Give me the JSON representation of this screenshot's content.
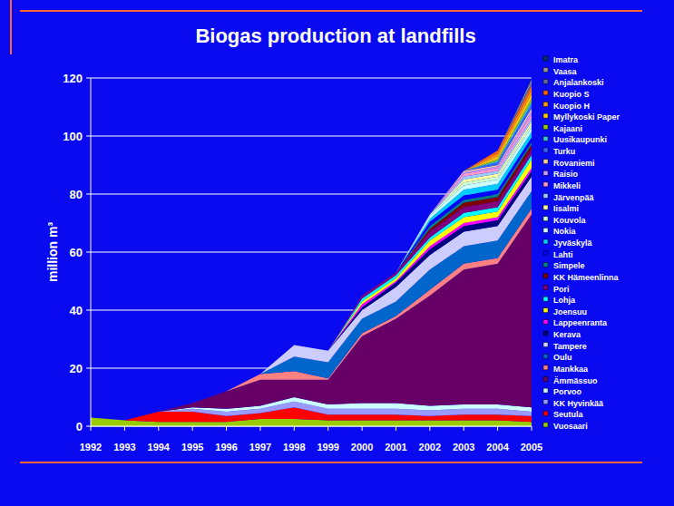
{
  "chart_data": {
    "type": "area",
    "stacked": true,
    "grid": true,
    "legend": "right",
    "title": "Biogas production at landfills",
    "y_label": "million m³",
    "categories": [
      "1992",
      "1993",
      "1994",
      "1995",
      "1996",
      "1997",
      "1998",
      "1999",
      "2000",
      "2001",
      "2002",
      "2003",
      "2004",
      "2005"
    ],
    "ylim": [
      0,
      120
    ],
    "yticks": [
      0,
      20,
      40,
      60,
      80,
      100,
      120
    ],
    "series": [
      {
        "name": "Vuosaari",
        "color": "#99cc00",
        "values": [
          3,
          2,
          1.5,
          1.5,
          1.5,
          2.5,
          2.5,
          2,
          2,
          2,
          2,
          2,
          2,
          1.5
        ]
      },
      {
        "name": "Seutula",
        "color": "#ff0000",
        "values": [
          0,
          0,
          3.5,
          3.5,
          2,
          2,
          4,
          2,
          2,
          2,
          1.5,
          2,
          2,
          2
        ]
      },
      {
        "name": "KK Hyvinkää",
        "color": "#9999ff",
        "values": [
          0,
          0,
          0,
          1,
          1.5,
          1.5,
          2,
          2,
          2,
          2,
          2,
          2,
          2,
          1.5
        ]
      },
      {
        "name": "Porvoo",
        "color": "#ccffff",
        "values": [
          0,
          0,
          0,
          0.5,
          1,
          1,
          1.5,
          1.5,
          2,
          2,
          1.5,
          1.5,
          1.5,
          1.5
        ]
      },
      {
        "name": "Ämmässuo",
        "color": "#660066",
        "values": [
          0,
          0,
          0,
          1.5,
          6,
          9,
          6,
          8.5,
          23,
          29,
          38,
          46.5,
          48.5,
          66.5
        ]
      },
      {
        "name": "Mankkaa",
        "color": "#ff8080",
        "values": [
          0,
          0,
          0,
          0,
          0,
          2,
          3,
          0.5,
          1,
          1,
          2,
          2,
          2,
          2
        ]
      },
      {
        "name": "Oulu",
        "color": "#0066cc",
        "values": [
          0,
          0,
          0,
          0,
          0,
          0,
          5,
          5.5,
          5,
          5,
          7,
          6,
          6,
          6
        ]
      },
      {
        "name": "Tampere",
        "color": "#ccccff",
        "values": [
          0,
          0,
          0,
          0,
          0,
          0,
          4,
          4,
          3,
          5,
          5,
          5,
          5,
          5
        ]
      },
      {
        "name": "Kerava",
        "color": "#000080",
        "values": [
          0,
          0,
          0,
          0,
          0,
          0,
          0,
          0,
          1,
          1.5,
          2,
          2,
          2,
          2
        ]
      },
      {
        "name": "Lappeenranta",
        "color": "#ff00ff",
        "values": [
          0,
          0,
          0,
          0,
          0,
          0,
          0,
          0,
          1,
          0.5,
          1,
          1,
          1,
          1
        ]
      },
      {
        "name": "Joensuu",
        "color": "#ffff00",
        "values": [
          0,
          0,
          0,
          0,
          0,
          0,
          0,
          0,
          1,
          1,
          2,
          2,
          2,
          3
        ]
      },
      {
        "name": "Lohja",
        "color": "#00ffff",
        "values": [
          0,
          0,
          0,
          0,
          0,
          0,
          0,
          0,
          1,
          1,
          1,
          1.5,
          1.5,
          1.5
        ]
      },
      {
        "name": "Pori",
        "color": "#800080",
        "values": [
          0,
          0,
          0,
          0,
          0,
          0,
          0,
          0,
          1,
          1,
          2,
          2,
          2,
          2
        ]
      },
      {
        "name": "KK Hämeenlinna",
        "color": "#800000",
        "values": [
          0,
          0,
          0,
          0,
          0,
          0,
          0,
          0,
          0,
          0,
          1,
          1.5,
          1.5,
          1.5
        ]
      },
      {
        "name": "Simpele",
        "color": "#008080",
        "values": [
          0,
          0,
          0,
          0,
          0,
          0,
          0,
          0,
          0,
          0,
          1,
          1,
          1,
          1
        ]
      },
      {
        "name": "Lahti",
        "color": "#0000ff",
        "values": [
          0,
          0,
          0,
          0,
          0,
          0,
          0,
          0,
          0,
          0,
          1.5,
          1.5,
          1.5,
          1.5
        ]
      },
      {
        "name": "Jyväskylä",
        "color": "#00ccff",
        "values": [
          0,
          0,
          0,
          0,
          0,
          0,
          0,
          0,
          0,
          0,
          1,
          2,
          2,
          2
        ]
      },
      {
        "name": "Nokia",
        "color": "#ccffff",
        "values": [
          0,
          0,
          0,
          0,
          0,
          0,
          0,
          0,
          0,
          0,
          1,
          1.5,
          1.5,
          1.5
        ]
      },
      {
        "name": "Kouvola",
        "color": "#ccffcc",
        "values": [
          0,
          0,
          0,
          0,
          0,
          0,
          0,
          0,
          0,
          0,
          0.5,
          1,
          1,
          1
        ]
      },
      {
        "name": "Iisalmi",
        "color": "#ffff99",
        "values": [
          0,
          0,
          0,
          0,
          0,
          0,
          0,
          0,
          0,
          0,
          0,
          1,
          1,
          1
        ]
      },
      {
        "name": "Järvenpää",
        "color": "#99ccff",
        "values": [
          0,
          0,
          0,
          0,
          0,
          0,
          0,
          0,
          0,
          0,
          0,
          1,
          1,
          1
        ]
      },
      {
        "name": "Mikkeli",
        "color": "#ff99cc",
        "values": [
          0,
          0,
          0,
          0,
          0,
          0,
          0,
          0,
          0,
          0,
          0,
          1,
          1,
          1.5
        ]
      },
      {
        "name": "Raisio",
        "color": "#cc99ff",
        "values": [
          0,
          0,
          0,
          0,
          0,
          0,
          0,
          0,
          0,
          0,
          0,
          0.5,
          0.5,
          1
        ]
      },
      {
        "name": "Rovaniemi",
        "color": "#ffcc99",
        "values": [
          0,
          0,
          0,
          0,
          0,
          0,
          0,
          0,
          0,
          0,
          0,
          0.5,
          0.5,
          1
        ]
      },
      {
        "name": "Turku",
        "color": "#3366ff",
        "values": [
          0,
          0,
          0,
          0,
          0,
          0,
          0,
          0,
          0,
          0,
          0,
          0,
          1,
          1.5
        ]
      },
      {
        "name": "Uusikaupunki",
        "color": "#33cccc",
        "values": [
          0,
          0,
          0,
          0,
          0,
          0,
          0,
          0,
          0,
          0,
          0,
          0,
          0.5,
          1
        ]
      },
      {
        "name": "Kajaani",
        "color": "#99cc00",
        "values": [
          0,
          0,
          0,
          0,
          0,
          0,
          0,
          0,
          0,
          0,
          0,
          0,
          0.5,
          1
        ]
      },
      {
        "name": "Myllykoski Paper",
        "color": "#ffcc00",
        "values": [
          0,
          0,
          0,
          0,
          0,
          0,
          0,
          0,
          0,
          0,
          0,
          0,
          1,
          1.5
        ]
      },
      {
        "name": "Kuopio H",
        "color": "#ff9900",
        "values": [
          0,
          0,
          0,
          0,
          0,
          0,
          0,
          0,
          0,
          0,
          0,
          0,
          1,
          1.5
        ]
      },
      {
        "name": "Kuopio S",
        "color": "#ff6600",
        "values": [
          0,
          0,
          0,
          0,
          0,
          0,
          0,
          0,
          0,
          0,
          0,
          0,
          1,
          1.5
        ]
      },
      {
        "name": "Anjalankoski",
        "color": "#666699",
        "values": [
          0,
          0,
          0,
          0,
          0,
          0,
          0,
          0,
          0,
          0,
          0,
          0,
          0,
          1
        ]
      },
      {
        "name": "Vaasa",
        "color": "#969696",
        "values": [
          0,
          0,
          0,
          0,
          0,
          0,
          0,
          0,
          0,
          0,
          0,
          0,
          0,
          1
        ]
      },
      {
        "name": "Imatra",
        "color": "#003366",
        "values": [
          0,
          0,
          0,
          0,
          0,
          0,
          0,
          0,
          0,
          0,
          0,
          0,
          0,
          0.5
        ]
      }
    ]
  }
}
